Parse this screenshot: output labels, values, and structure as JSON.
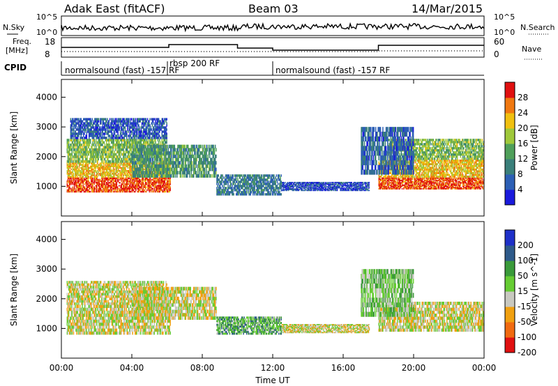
{
  "header": {
    "radar": "Adak East (fitACF)",
    "beam": "Beam 03",
    "date": "14/Mar/2015"
  },
  "status_panels": {
    "nsky_label": "N.Sky",
    "nsearch_label": "N.Search",
    "nsky_ticks": [
      "10^5",
      "10^0"
    ],
    "nsearch_ticks": [
      "10^5",
      "10^0"
    ],
    "freq_label_1": "Freq.",
    "freq_label_2": "[MHz]",
    "freq_ticks": [
      "18",
      "8"
    ],
    "nave_label": "Nave",
    "nave_ticks": [
      "60",
      "0"
    ],
    "cpid_label": "CPID",
    "cpid_segments": [
      {
        "label": "normalsound (fast) -157 RF",
        "start_h": 0,
        "end_h": 6
      },
      {
        "label": "rbsp 200 RF",
        "start_h": 6,
        "end_h": 12
      },
      {
        "label": "normalsound (fast) -157 RF",
        "start_h": 12,
        "end_h": 24
      }
    ]
  },
  "chart_data": [
    {
      "type": "heatmap",
      "title": "",
      "xlabel": "Time UT",
      "ylabel": "Slant Range [km]",
      "xticks": [
        "00:00",
        "04:00",
        "08:00",
        "12:00",
        "16:00",
        "20:00",
        "00:00"
      ],
      "xlim_hours": [
        0,
        24
      ],
      "yticks": [
        1000,
        2000,
        3000,
        4000
      ],
      "ylim": [
        0,
        4600
      ],
      "colorbar": {
        "label": "Power [dB]",
        "ticks": [
          4,
          8,
          12,
          16,
          20,
          24,
          28
        ],
        "range": [
          0,
          32
        ],
        "colors": [
          "#1a1adc",
          "#2c5fb5",
          "#3a7f7a",
          "#4f9f5a",
          "#9fc83a",
          "#f0c010",
          "#f07810",
          "#e01010"
        ]
      },
      "bands": [
        {
          "t0": 0.3,
          "t1": 6.2,
          "r0": 800,
          "r1": 1300,
          "level": 28
        },
        {
          "t0": 0.3,
          "t1": 6.2,
          "r0": 1300,
          "r1": 1800,
          "level": 22
        },
        {
          "t0": 0.3,
          "t1": 6.0,
          "r0": 1800,
          "r1": 2600,
          "level": 16
        },
        {
          "t0": 0.5,
          "t1": 6.0,
          "r0": 2600,
          "r1": 3300,
          "level": 6
        },
        {
          "t0": 4.0,
          "t1": 8.8,
          "r0": 1300,
          "r1": 2400,
          "level": 12
        },
        {
          "t0": 8.8,
          "t1": 12.5,
          "r0": 700,
          "r1": 1400,
          "level": 9
        },
        {
          "t0": 12.5,
          "t1": 17.5,
          "r0": 850,
          "r1": 1150,
          "level": 5
        },
        {
          "t0": 18.0,
          "t1": 24.0,
          "r0": 900,
          "r1": 1300,
          "level": 28
        },
        {
          "t0": 18.0,
          "t1": 24.0,
          "r0": 1300,
          "r1": 1900,
          "level": 22
        },
        {
          "t0": 18.5,
          "t1": 24.0,
          "r0": 1900,
          "r1": 2600,
          "level": 16
        },
        {
          "t0": 17.0,
          "t1": 20.0,
          "r0": 1400,
          "r1": 3000,
          "level": 7
        }
      ]
    },
    {
      "type": "heatmap",
      "title": "",
      "xlabel": "Time UT",
      "ylabel": "Slant Range [km]",
      "xticks": [
        "00:00",
        "04:00",
        "08:00",
        "12:00",
        "16:00",
        "20:00",
        "00:00"
      ],
      "xlim_hours": [
        0,
        24
      ],
      "yticks": [
        1000,
        2000,
        3000,
        4000
      ],
      "ylim": [
        0,
        4600
      ],
      "colorbar": {
        "label": "Velocity [m s^-1]",
        "ticks": [
          200,
          100,
          50,
          15,
          -15,
          -50,
          -100,
          -200
        ],
        "colors": [
          "#1e30c8",
          "#2e5a8a",
          "#3a9a3a",
          "#66cc33",
          "#c8c8c0",
          "#f0a010",
          "#f06a10",
          "#e01010"
        ]
      },
      "bands": [
        {
          "t0": 0.3,
          "t1": 6.2,
          "r0": 800,
          "r1": 1800,
          "level": 0
        },
        {
          "t0": 0.3,
          "t1": 6.0,
          "r0": 1800,
          "r1": 2600,
          "level": 0
        },
        {
          "t0": 4.0,
          "t1": 8.8,
          "r0": 1300,
          "r1": 2400,
          "level": 0
        },
        {
          "t0": 8.8,
          "t1": 12.5,
          "r0": 800,
          "r1": 1400,
          "level": 30
        },
        {
          "t0": 12.5,
          "t1": 17.5,
          "r0": 850,
          "r1": 1150,
          "level": 0
        },
        {
          "t0": 18.0,
          "t1": 24.0,
          "r0": 900,
          "r1": 1900,
          "level": 0
        },
        {
          "t0": 17.0,
          "t1": 20.0,
          "r0": 1400,
          "r1": 3000,
          "level": 20
        }
      ]
    }
  ]
}
